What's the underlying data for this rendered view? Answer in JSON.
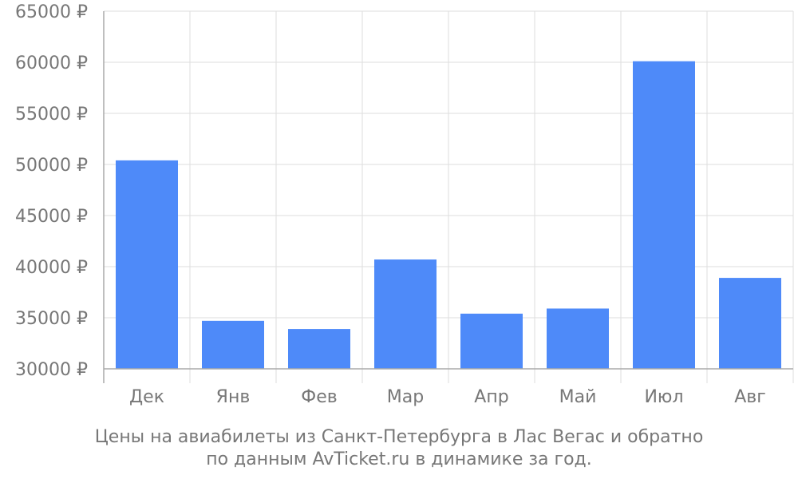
{
  "chart_data": {
    "type": "bar",
    "categories": [
      "Дек",
      "Янв",
      "Фев",
      "Мар",
      "Апр",
      "Май",
      "Июл",
      "Авг"
    ],
    "values": [
      50400,
      34700,
      33900,
      40700,
      35400,
      35900,
      60100,
      38900
    ],
    "y_ticks": [
      "30000 ₽",
      "35000 ₽",
      "40000 ₽",
      "45000 ₽",
      "50000 ₽",
      "55000 ₽",
      "60000 ₽",
      "65000 ₽"
    ],
    "ylim": [
      30000,
      65000
    ],
    "grid": true,
    "bar_color": "#4e8af9",
    "caption": [
      "Цены на авиабилеты из Санкт-Петербурга в Лас Вегас и обратно",
      "по данным AvTicket.ru в динамике за год."
    ]
  },
  "colors": {
    "grid": "#dddddd",
    "axis": "#aaaaaa",
    "text": "#777777"
  }
}
